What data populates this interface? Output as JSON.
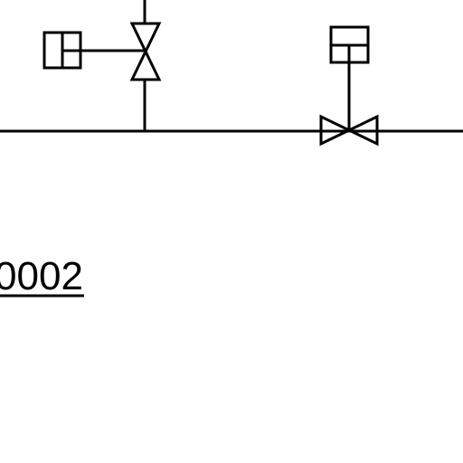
{
  "diagram": {
    "line_number_label": "0002",
    "stroke_color": "#000000",
    "background_color": "#ffffff",
    "symbols": [
      "vertical-gate-valve-with-side-actuator",
      "horizontal-gate-valve-with-top-actuator"
    ]
  }
}
